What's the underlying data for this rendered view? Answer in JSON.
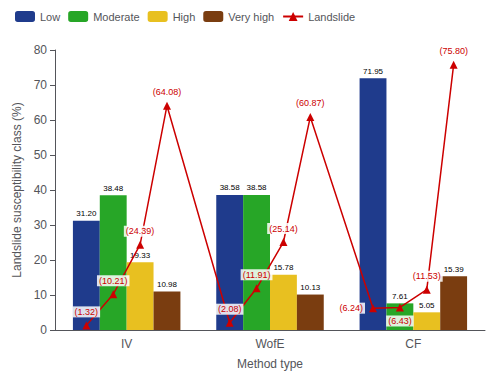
{
  "chart_data": {
    "type": "bar",
    "categories": [
      "IV",
      "WofE",
      "CF"
    ],
    "xlabel": "Method type",
    "ylabel": "Landslide susceptibility class (%)",
    "ylim": [
      0,
      80
    ],
    "yticks": [
      0,
      10,
      20,
      30,
      40,
      50,
      60,
      70,
      80
    ],
    "grid": false,
    "legend": "upper left",
    "data_labels": true,
    "series": [
      {
        "name": "Low",
        "color": "#1f3b8c",
        "values": [
          31.2,
          38.58,
          71.95
        ],
        "value_labels": [
          "31.20",
          "38.58",
          "71.95"
        ]
      },
      {
        "name": "Moderate",
        "color": "#27a627",
        "values": [
          38.48,
          38.58,
          7.61
        ],
        "value_labels": [
          "38.48",
          "38.58",
          "7.61"
        ]
      },
      {
        "name": "High",
        "color": "#e8c020",
        "values": [
          19.33,
          15.78,
          5.05
        ],
        "value_labels": [
          "19.33",
          "15.78",
          "5.05"
        ]
      },
      {
        "name": "Very high",
        "color": "#7a3d10",
        "values": [
          10.98,
          10.13,
          15.39
        ],
        "value_labels": [
          "10.98",
          "10.13",
          "15.39"
        ]
      },
      {
        "name": "Landslide",
        "type": "line",
        "marker": "triangle",
        "color": "#cc0000",
        "values": [
          [
            1.32,
            10.21,
            24.39,
            64.08
          ],
          [
            2.08,
            11.91,
            25.14,
            60.87
          ],
          [
            6.24,
            6.43,
            11.53,
            75.8
          ]
        ],
        "value_labels": [
          [
            "(1.32)",
            "(10.21)",
            "(24.39)",
            "(64.08)"
          ],
          [
            "(2.08)",
            "(11.91)",
            "(25.14)",
            "(60.87)"
          ],
          [
            "(6.24)",
            "(6.43)",
            "(11.53)",
            "(75.80)"
          ]
        ]
      }
    ]
  }
}
